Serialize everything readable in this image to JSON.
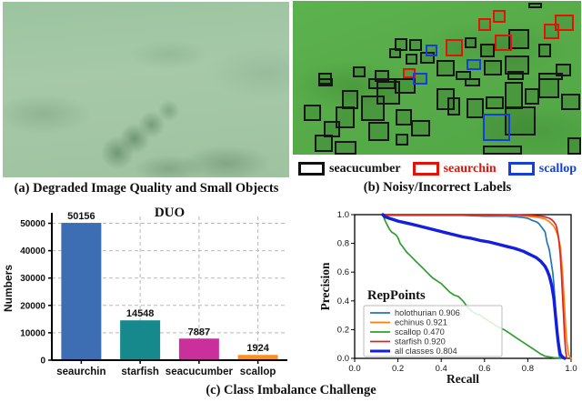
{
  "captions": {
    "a": "(a) Degraded Image Quality and Small Objects",
    "b": "(b) Noisy/Incorrect Labels",
    "c": "(c) Class Imbalance Challenge"
  },
  "panel_b": {
    "legend": [
      {
        "label": "seacucumber",
        "color": "#111111",
        "text_color": "#111111"
      },
      {
        "label": "seaurchin",
        "color": "#e01408",
        "text_color": "#e01408"
      },
      {
        "label": "scallop",
        "color": "#1540d8",
        "text_color": "#1540d8"
      }
    ],
    "boxes": {
      "seacucumber": [
        [
          35.2,
          24.1,
          4.7,
          8.2
        ],
        [
          33.3,
          30.6,
          4.1,
          6.5
        ],
        [
          40.3,
          24.7,
          4.4,
          7.6
        ],
        [
          39.0,
          34.1,
          4.1,
          7.1
        ],
        [
          44.3,
          32.9,
          5.0,
          8.2
        ],
        [
          20.8,
          42.4,
          4.4,
          7.1
        ],
        [
          28.3,
          44.7,
          5.0,
          8.2
        ],
        [
          8.8,
          46.5,
          4.7,
          8.2
        ],
        [
          59.7,
          23.5,
          4.1,
          7.1
        ],
        [
          65.1,
          27.6,
          5.0,
          8.8
        ],
        [
          74.8,
          18.2,
          7.2,
          12.9
        ],
        [
          85.2,
          27.6,
          4.4,
          8.8
        ],
        [
          73.6,
          35.3,
          8.5,
          12.9
        ],
        [
          66.4,
          38.2,
          6.0,
          10.6
        ],
        [
          49.7,
          38.2,
          6.3,
          11.2
        ],
        [
          56.6,
          45.3,
          5.3,
          5.9
        ],
        [
          91.2,
          40.6,
          5.3,
          8.8
        ],
        [
          74.5,
          45.3,
          5.7,
          5.9
        ],
        [
          85.2,
          46.5,
          8.5,
          4.7
        ],
        [
          8.8,
          50.0,
          5.0,
          5.9
        ],
        [
          17.0,
          58.2,
          5.7,
          12.4
        ],
        [
          3.8,
          67.6,
          6.0,
          10.6
        ],
        [
          14.8,
          68.8,
          6.6,
          14.1
        ],
        [
          23.6,
          61.8,
          8.2,
          16.5
        ],
        [
          10.7,
          78.2,
          5.7,
          10.6
        ],
        [
          7.5,
          87.1,
          6.3,
          11.2
        ],
        [
          14.5,
          91.2,
          7.5,
          8.8
        ],
        [
          26.1,
          50.0,
          9.7,
          7.6
        ],
        [
          28.9,
          51.8,
          8.2,
          15.9
        ],
        [
          35.2,
          50.0,
          7.5,
          10.6
        ],
        [
          35.5,
          70.6,
          5.7,
          10.6
        ],
        [
          40.9,
          77.6,
          6.6,
          10.6
        ],
        [
          26.1,
          78.8,
          7.2,
          12.4
        ],
        [
          35.5,
          86.5,
          4.7,
          7.6
        ],
        [
          59.7,
          50.0,
          5.3,
          5.9
        ],
        [
          49.7,
          57.1,
          6.3,
          14.1
        ],
        [
          53.5,
          62.9,
          4.4,
          11.8
        ],
        [
          60.1,
          63.5,
          6.3,
          12.9
        ],
        [
          67.0,
          62.4,
          6.3,
          8.2
        ],
        [
          73.6,
          52.9,
          6.3,
          17.6
        ],
        [
          80.5,
          57.1,
          5.0,
          10.6
        ],
        [
          85.2,
          50.0,
          7.2,
          13.5
        ],
        [
          93.1,
          60.6,
          6.6,
          10.6
        ],
        [
          73.6,
          68.8,
          10.7,
          18.8
        ],
        [
          66.0,
          94.1,
          13.5,
          5.9
        ],
        [
          95.3,
          88.8,
          4.7,
          11.2
        ],
        [
          81.8,
          1.2,
          4.7,
          3.5
        ]
      ],
      "seaurchin": [
        [
          69.5,
          5.9,
          4.4,
          8.2
        ],
        [
          64.5,
          11.2,
          4.4,
          8.2
        ],
        [
          90.9,
          8.8,
          6.6,
          10.6
        ],
        [
          87.1,
          14.7,
          5.3,
          10.0
        ],
        [
          53.1,
          24.7,
          6.0,
          11.2
        ],
        [
          70.1,
          21.8,
          6.0,
          10.6
        ],
        [
          38.1,
          43.5,
          4.4,
          7.1
        ]
      ],
      "scallop": [
        [
          45.9,
          28.2,
          4.4,
          7.6
        ],
        [
          60.4,
          37.6,
          5.0,
          7.6
        ],
        [
          41.5,
          46.5,
          5.3,
          8.2
        ],
        [
          66.0,
          73.5,
          9.4,
          17.6
        ]
      ]
    }
  },
  "chart_data": [
    {
      "type": "bar",
      "title": "DUO",
      "ylabel": "Numbers",
      "xlabel": "",
      "categories": [
        "seaurchin",
        "starfish",
        "seacucumber",
        "scallop"
      ],
      "values": [
        50156,
        14548,
        7887,
        1924
      ],
      "bar_colors": [
        "#3d6eb4",
        "#15898c",
        "#c9309b",
        "#f59426"
      ],
      "ylim": [
        0,
        52500
      ],
      "yticks": [
        0,
        10000,
        20000,
        30000,
        40000,
        50000
      ],
      "grid": "dashed"
    },
    {
      "type": "line",
      "annotation": "RepPoints",
      "xlabel": "Recall",
      "ylabel": "Precision",
      "xlim": [
        0.0,
        1.0
      ],
      "ylim": [
        0.0,
        1.0
      ],
      "xticks": [
        0.0,
        0.2,
        0.4,
        0.6,
        0.8,
        1.0
      ],
      "yticks": [
        0.0,
        0.2,
        0.4,
        0.6,
        0.8,
        1.0
      ],
      "legend_position": "lower left",
      "series": [
        {
          "name": "holothurian 0.906",
          "color": "#1f77b4",
          "width": 1.7,
          "points": [
            [
              0.13,
              0.995
            ],
            [
              0.3,
              0.995
            ],
            [
              0.5,
              0.995
            ],
            [
              0.6,
              0.99
            ],
            [
              0.7,
              0.99
            ],
            [
              0.75,
              0.985
            ],
            [
              0.78,
              0.98
            ],
            [
              0.8,
              0.975
            ],
            [
              0.82,
              0.96
            ],
            [
              0.84,
              0.95
            ],
            [
              0.85,
              0.94
            ],
            [
              0.86,
              0.92
            ],
            [
              0.87,
              0.9
            ],
            [
              0.88,
              0.88
            ],
            [
              0.885,
              0.84
            ],
            [
              0.89,
              0.8
            ],
            [
              0.895,
              0.78
            ],
            [
              0.9,
              0.75
            ],
            [
              0.905,
              0.7
            ],
            [
              0.91,
              0.65
            ],
            [
              0.915,
              0.6
            ],
            [
              0.92,
              0.52
            ],
            [
              0.925,
              0.42
            ],
            [
              0.93,
              0.3
            ],
            [
              0.935,
              0.18
            ],
            [
              0.94,
              0.08
            ],
            [
              0.945,
              0.02
            ],
            [
              0.95,
              0.0
            ]
          ]
        },
        {
          "name": "echinus 0.921",
          "color": "#ff7f0e",
          "width": 1.7,
          "points": [
            [
              0.13,
              1.0
            ],
            [
              0.5,
              1.0
            ],
            [
              0.65,
              0.998
            ],
            [
              0.75,
              0.995
            ],
            [
              0.8,
              0.99
            ],
            [
              0.85,
              0.98
            ],
            [
              0.88,
              0.97
            ],
            [
              0.9,
              0.95
            ],
            [
              0.92,
              0.92
            ],
            [
              0.93,
              0.89
            ],
            [
              0.94,
              0.85
            ],
            [
              0.95,
              0.78
            ],
            [
              0.955,
              0.7
            ],
            [
              0.96,
              0.6
            ],
            [
              0.965,
              0.48
            ],
            [
              0.97,
              0.35
            ],
            [
              0.975,
              0.22
            ],
            [
              0.98,
              0.12
            ],
            [
              0.985,
              0.06
            ],
            [
              0.99,
              0.02
            ],
            [
              1.0,
              0.0
            ]
          ]
        },
        {
          "name": "scallop 0.470",
          "color": "#2ca02c",
          "width": 1.7,
          "points": [
            [
              0.13,
              1.0
            ],
            [
              0.14,
              0.96
            ],
            [
              0.15,
              0.93
            ],
            [
              0.16,
              0.9
            ],
            [
              0.17,
              0.88
            ],
            [
              0.19,
              0.86
            ],
            [
              0.2,
              0.84
            ],
            [
              0.21,
              0.8
            ],
            [
              0.22,
              0.78
            ],
            [
              0.24,
              0.74
            ],
            [
              0.26,
              0.71
            ],
            [
              0.28,
              0.68
            ],
            [
              0.3,
              0.65
            ],
            [
              0.32,
              0.62
            ],
            [
              0.34,
              0.59
            ],
            [
              0.36,
              0.56
            ],
            [
              0.38,
              0.54
            ],
            [
              0.4,
              0.52
            ],
            [
              0.42,
              0.49
            ],
            [
              0.44,
              0.46
            ],
            [
              0.46,
              0.44
            ],
            [
              0.48,
              0.43
            ],
            [
              0.5,
              0.4
            ],
            [
              0.52,
              0.36
            ],
            [
              0.54,
              0.33
            ],
            [
              0.56,
              0.31
            ],
            [
              0.58,
              0.3
            ],
            [
              0.6,
              0.28
            ],
            [
              0.63,
              0.25
            ],
            [
              0.66,
              0.22
            ],
            [
              0.69,
              0.2
            ],
            [
              0.72,
              0.17
            ],
            [
              0.75,
              0.14
            ],
            [
              0.78,
              0.11
            ],
            [
              0.8,
              0.09
            ],
            [
              0.82,
              0.07
            ],
            [
              0.84,
              0.05
            ],
            [
              0.86,
              0.03
            ],
            [
              0.88,
              0.015
            ],
            [
              0.92,
              0.005
            ],
            [
              0.97,
              0.0
            ]
          ]
        },
        {
          "name": "starfish 0.920",
          "color": "#d62728",
          "width": 1.7,
          "points": [
            [
              0.13,
              1.0
            ],
            [
              0.6,
              1.0
            ],
            [
              0.75,
              0.998
            ],
            [
              0.82,
              0.995
            ],
            [
              0.86,
              0.99
            ],
            [
              0.88,
              0.985
            ],
            [
              0.9,
              0.975
            ],
            [
              0.91,
              0.965
            ],
            [
              0.92,
              0.95
            ],
            [
              0.93,
              0.93
            ],
            [
              0.935,
              0.9
            ],
            [
              0.94,
              0.86
            ],
            [
              0.945,
              0.8
            ],
            [
              0.95,
              0.72
            ],
            [
              0.955,
              0.6
            ],
            [
              0.96,
              0.45
            ],
            [
              0.965,
              0.3
            ],
            [
              0.97,
              0.15
            ],
            [
              0.975,
              0.05
            ],
            [
              0.98,
              0.0
            ]
          ]
        },
        {
          "name": "all classes 0.804",
          "color": "#1220dd",
          "width": 3.4,
          "points": [
            [
              0.13,
              1.0
            ],
            [
              0.14,
              0.985
            ],
            [
              0.16,
              0.975
            ],
            [
              0.18,
              0.965
            ],
            [
              0.2,
              0.955
            ],
            [
              0.23,
              0.945
            ],
            [
              0.26,
              0.935
            ],
            [
              0.3,
              0.92
            ],
            [
              0.34,
              0.905
            ],
            [
              0.38,
              0.89
            ],
            [
              0.42,
              0.875
            ],
            [
              0.46,
              0.86
            ],
            [
              0.5,
              0.845
            ],
            [
              0.54,
              0.835
            ],
            [
              0.58,
              0.82
            ],
            [
              0.62,
              0.81
            ],
            [
              0.66,
              0.795
            ],
            [
              0.7,
              0.78
            ],
            [
              0.74,
              0.765
            ],
            [
              0.78,
              0.745
            ],
            [
              0.8,
              0.73
            ],
            [
              0.82,
              0.715
            ],
            [
              0.84,
              0.7
            ],
            [
              0.86,
              0.675
            ],
            [
              0.88,
              0.64
            ],
            [
              0.89,
              0.61
            ],
            [
              0.9,
              0.57
            ],
            [
              0.91,
              0.51
            ],
            [
              0.92,
              0.42
            ],
            [
              0.925,
              0.35
            ],
            [
              0.93,
              0.27
            ],
            [
              0.935,
              0.19
            ],
            [
              0.94,
              0.12
            ],
            [
              0.945,
              0.07
            ],
            [
              0.95,
              0.03
            ],
            [
              0.96,
              0.01
            ],
            [
              0.97,
              0.0
            ]
          ]
        }
      ]
    }
  ]
}
